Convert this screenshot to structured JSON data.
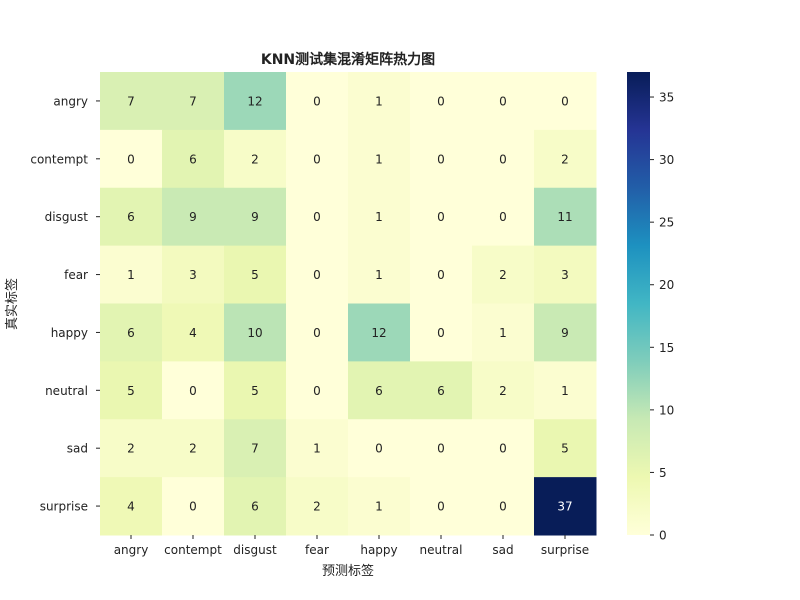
{
  "chart_data": {
    "type": "heatmap",
    "title": "KNN测试集混淆矩阵热力图",
    "xlabel": "预测标签",
    "ylabel": "真实标签",
    "x_categories": [
      "angry",
      "contempt",
      "disgust",
      "fear",
      "happy",
      "neutral",
      "sad",
      "surprise"
    ],
    "y_categories": [
      "angry",
      "contempt",
      "disgust",
      "fear",
      "happy",
      "neutral",
      "sad",
      "surprise"
    ],
    "values": [
      [
        7,
        7,
        12,
        0,
        1,
        0,
        0,
        0
      ],
      [
        0,
        6,
        2,
        0,
        1,
        0,
        0,
        2
      ],
      [
        6,
        9,
        9,
        0,
        1,
        0,
        0,
        11
      ],
      [
        1,
        3,
        5,
        0,
        1,
        0,
        2,
        3
      ],
      [
        6,
        4,
        10,
        0,
        12,
        0,
        1,
        9
      ],
      [
        5,
        0,
        5,
        0,
        6,
        6,
        2,
        1
      ],
      [
        2,
        2,
        7,
        1,
        0,
        0,
        0,
        5
      ],
      [
        4,
        0,
        6,
        2,
        1,
        0,
        0,
        37
      ]
    ],
    "colorbar": {
      "min": 0,
      "max": 37,
      "ticks": [
        0,
        5,
        10,
        15,
        20,
        25,
        30,
        35
      ],
      "colormap": "YlGnBu",
      "colors": [
        "#ffffd9",
        "#edf8b1",
        "#c7e9b4",
        "#7fcdbb",
        "#41b6c4",
        "#1d91c0",
        "#225ea8",
        "#253494",
        "#081d58"
      ]
    }
  }
}
